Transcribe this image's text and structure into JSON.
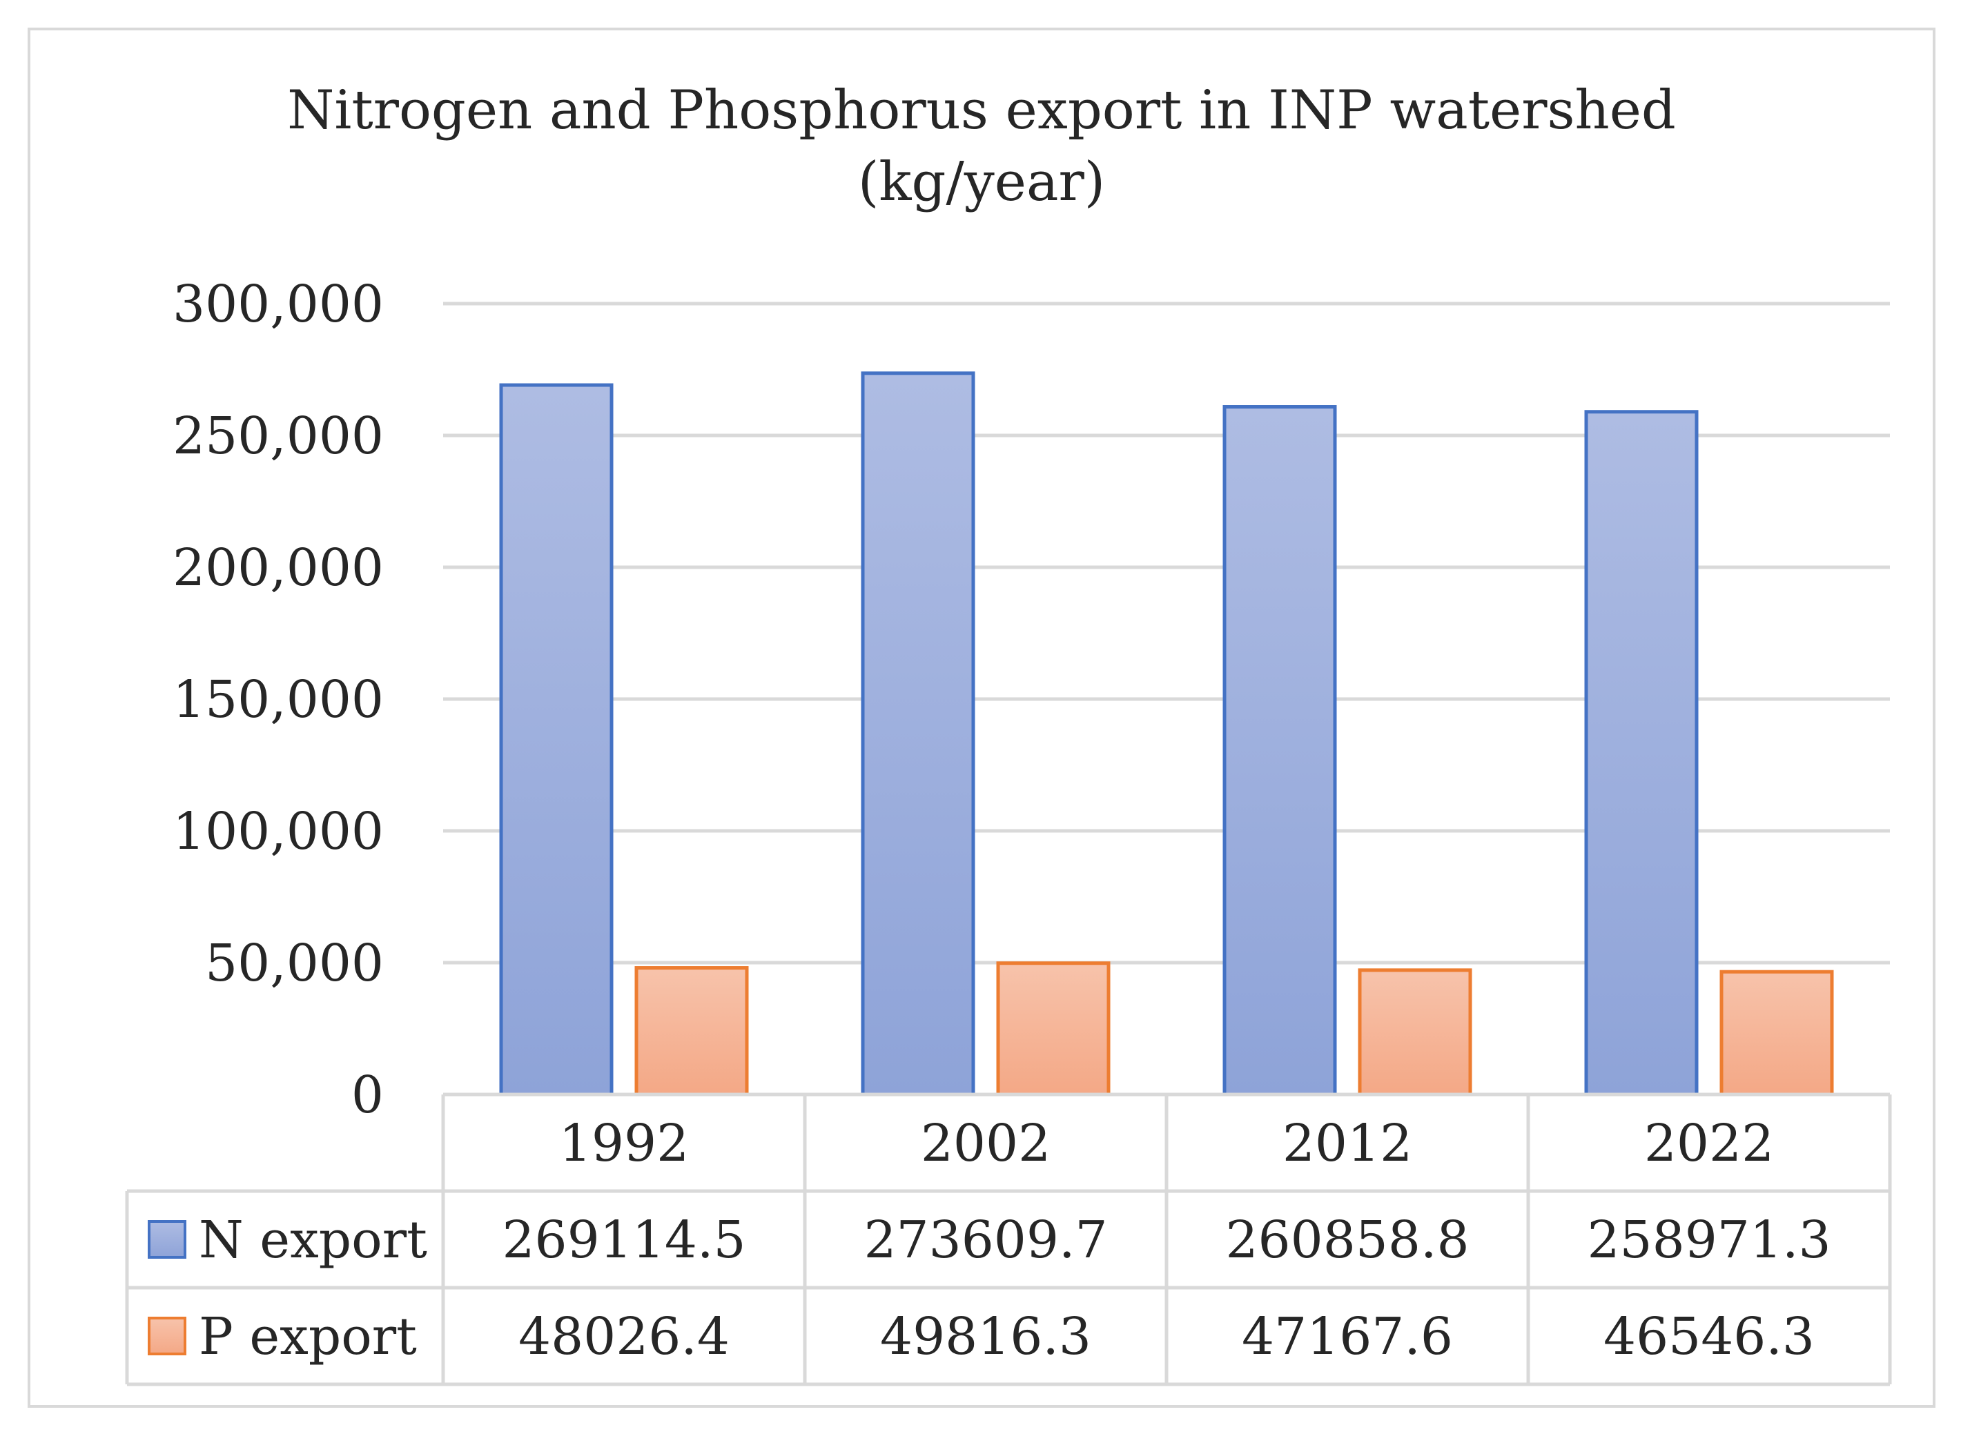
{
  "chart_data": {
    "type": "bar",
    "title": "Nitrogen and Phosphorus export in INP watershed",
    "subtitle": "(kg/year)",
    "categories": [
      "1992",
      "2002",
      "2012",
      "2022"
    ],
    "series": [
      {
        "name": "N export",
        "values": [
          269114.5,
          273609.7,
          260858.8,
          258971.3
        ],
        "labels": [
          "269114.5",
          "273609.7",
          "260858.8",
          "258971.3"
        ],
        "color": "#8ea3d8",
        "color_top": "#aebce3",
        "border": "#4472c4"
      },
      {
        "name": "P export",
        "values": [
          48026.4,
          49816.3,
          47167.6,
          46546.3
        ],
        "labels": [
          "48026.4",
          "49816.3",
          "47167.6",
          "46546.3"
        ],
        "color": "#f4a886",
        "color_top": "#f7c3ab",
        "border": "#ed7d31"
      }
    ],
    "yticks": [
      "0",
      "50,000",
      "100,000",
      "150,000",
      "200,000",
      "250,000",
      "300,000"
    ],
    "ytick_values": [
      0,
      50000,
      100000,
      150000,
      200000,
      250000,
      300000
    ],
    "ylim": [
      0,
      300000
    ],
    "grid": true,
    "legend": "data-table",
    "xlabel": "",
    "ylabel": ""
  }
}
